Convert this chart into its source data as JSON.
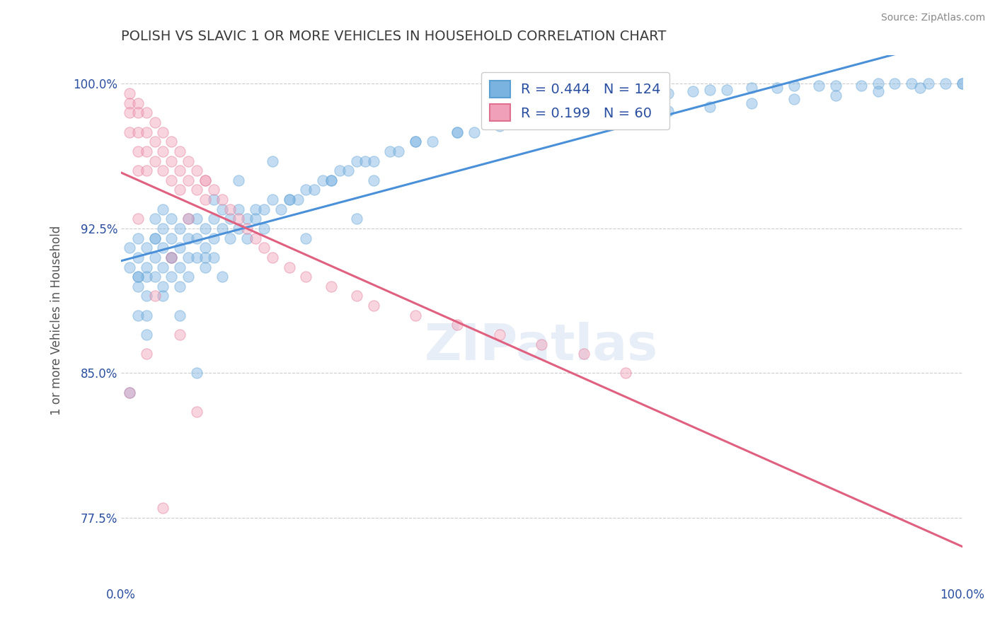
{
  "title": "POLISH VS SLAVIC 1 OR MORE VEHICLES IN HOUSEHOLD CORRELATION CHART",
  "source_text": "Source: ZipAtlas.com",
  "xlabel": "",
  "ylabel": "1 or more Vehicles in Household",
  "xlim": [
    0.0,
    1.0
  ],
  "ylim": [
    0.74,
    1.015
  ],
  "yticks": [
    0.775,
    0.85,
    0.925,
    1.0
  ],
  "ytick_labels": [
    "77.5%",
    "85.0%",
    "92.5%",
    "100.0%"
  ],
  "xtick_labels": [
    "0.0%",
    "",
    "",
    "",
    "",
    "",
    "",
    "",
    "",
    "",
    "100.0%"
  ],
  "title_color": "#3a3a3a",
  "title_fontsize": 14,
  "background_color": "#ffffff",
  "grid_color": "#cccccc",
  "poles_color": "#7ab3e0",
  "poles_edge_color": "#5a9fd4",
  "slavs_color": "#f0a0b8",
  "slavs_edge_color": "#e07090",
  "poles_line_color": "#4a90d9",
  "slavs_line_color": "#e06080",
  "legend_R_poles": "R = 0.444",
  "legend_N_poles": "N = 124",
  "legend_R_slavs": "R = 0.199",
  "legend_N_slavs": "N = 60",
  "legend_color": "#2a4fa0",
  "marker_size": 120,
  "marker_alpha": 0.45,
  "poles_x": [
    0.01,
    0.01,
    0.02,
    0.02,
    0.02,
    0.02,
    0.02,
    0.03,
    0.03,
    0.03,
    0.03,
    0.03,
    0.04,
    0.04,
    0.04,
    0.04,
    0.05,
    0.05,
    0.05,
    0.05,
    0.05,
    0.06,
    0.06,
    0.06,
    0.06,
    0.07,
    0.07,
    0.07,
    0.07,
    0.08,
    0.08,
    0.08,
    0.09,
    0.09,
    0.09,
    0.1,
    0.1,
    0.1,
    0.11,
    0.11,
    0.11,
    0.12,
    0.12,
    0.13,
    0.13,
    0.14,
    0.14,
    0.15,
    0.15,
    0.16,
    0.17,
    0.17,
    0.18,
    0.19,
    0.2,
    0.21,
    0.22,
    0.23,
    0.24,
    0.25,
    0.26,
    0.27,
    0.28,
    0.29,
    0.3,
    0.32,
    0.33,
    0.35,
    0.37,
    0.4,
    0.42,
    0.45,
    0.48,
    0.5,
    0.52,
    0.55,
    0.58,
    0.6,
    0.63,
    0.65,
    0.68,
    0.7,
    0.72,
    0.75,
    0.78,
    0.8,
    0.83,
    0.85,
    0.88,
    0.9,
    0.92,
    0.94,
    0.96,
    0.98,
    1.0,
    0.01,
    0.02,
    0.03,
    0.04,
    0.05,
    0.06,
    0.07,
    0.08,
    0.09,
    0.1,
    0.11,
    0.12,
    0.14,
    0.16,
    0.18,
    0.2,
    0.22,
    0.25,
    0.28,
    0.3,
    0.35,
    0.4,
    0.45,
    0.5,
    0.55,
    0.6,
    0.65,
    0.7,
    0.75,
    0.8,
    0.85,
    0.9,
    0.95,
    1.0
  ],
  "poles_y": [
    0.915,
    0.905,
    0.92,
    0.91,
    0.9,
    0.895,
    0.88,
    0.915,
    0.905,
    0.9,
    0.89,
    0.88,
    0.93,
    0.92,
    0.91,
    0.9,
    0.935,
    0.925,
    0.915,
    0.905,
    0.895,
    0.93,
    0.92,
    0.91,
    0.9,
    0.925,
    0.915,
    0.905,
    0.895,
    0.92,
    0.91,
    0.9,
    0.93,
    0.92,
    0.91,
    0.925,
    0.915,
    0.905,
    0.93,
    0.92,
    0.91,
    0.935,
    0.925,
    0.93,
    0.92,
    0.935,
    0.925,
    0.93,
    0.92,
    0.935,
    0.935,
    0.925,
    0.94,
    0.935,
    0.94,
    0.94,
    0.945,
    0.945,
    0.95,
    0.95,
    0.955,
    0.955,
    0.96,
    0.96,
    0.96,
    0.965,
    0.965,
    0.97,
    0.97,
    0.975,
    0.975,
    0.98,
    0.982,
    0.985,
    0.988,
    0.99,
    0.992,
    0.993,
    0.994,
    0.995,
    0.996,
    0.997,
    0.997,
    0.998,
    0.998,
    0.999,
    0.999,
    0.999,
    0.999,
    1.0,
    1.0,
    1.0,
    1.0,
    1.0,
    1.0,
    0.84,
    0.9,
    0.87,
    0.92,
    0.89,
    0.91,
    0.88,
    0.93,
    0.85,
    0.91,
    0.94,
    0.9,
    0.95,
    0.93,
    0.96,
    0.94,
    0.92,
    0.95,
    0.93,
    0.95,
    0.97,
    0.975,
    0.978,
    0.98,
    0.982,
    0.984,
    0.986,
    0.988,
    0.99,
    0.992,
    0.994,
    0.996,
    0.998,
    1.0
  ],
  "slavs_x": [
    0.01,
    0.01,
    0.01,
    0.01,
    0.02,
    0.02,
    0.02,
    0.02,
    0.02,
    0.03,
    0.03,
    0.03,
    0.03,
    0.04,
    0.04,
    0.04,
    0.05,
    0.05,
    0.05,
    0.06,
    0.06,
    0.06,
    0.07,
    0.07,
    0.07,
    0.08,
    0.08,
    0.09,
    0.09,
    0.1,
    0.1,
    0.11,
    0.12,
    0.13,
    0.14,
    0.15,
    0.16,
    0.17,
    0.18,
    0.2,
    0.22,
    0.25,
    0.28,
    0.3,
    0.35,
    0.4,
    0.45,
    0.5,
    0.55,
    0.6,
    0.01,
    0.02,
    0.03,
    0.04,
    0.05,
    0.06,
    0.07,
    0.08,
    0.09,
    0.1
  ],
  "slavs_y": [
    0.995,
    0.99,
    0.985,
    0.975,
    0.99,
    0.985,
    0.975,
    0.965,
    0.955,
    0.985,
    0.975,
    0.965,
    0.955,
    0.98,
    0.97,
    0.96,
    0.975,
    0.965,
    0.955,
    0.97,
    0.96,
    0.95,
    0.965,
    0.955,
    0.945,
    0.96,
    0.95,
    0.955,
    0.945,
    0.95,
    0.94,
    0.945,
    0.94,
    0.935,
    0.93,
    0.925,
    0.92,
    0.915,
    0.91,
    0.905,
    0.9,
    0.895,
    0.89,
    0.885,
    0.88,
    0.875,
    0.87,
    0.865,
    0.86,
    0.85,
    0.84,
    0.93,
    0.86,
    0.89,
    0.78,
    0.91,
    0.87,
    0.93,
    0.83,
    0.95
  ]
}
